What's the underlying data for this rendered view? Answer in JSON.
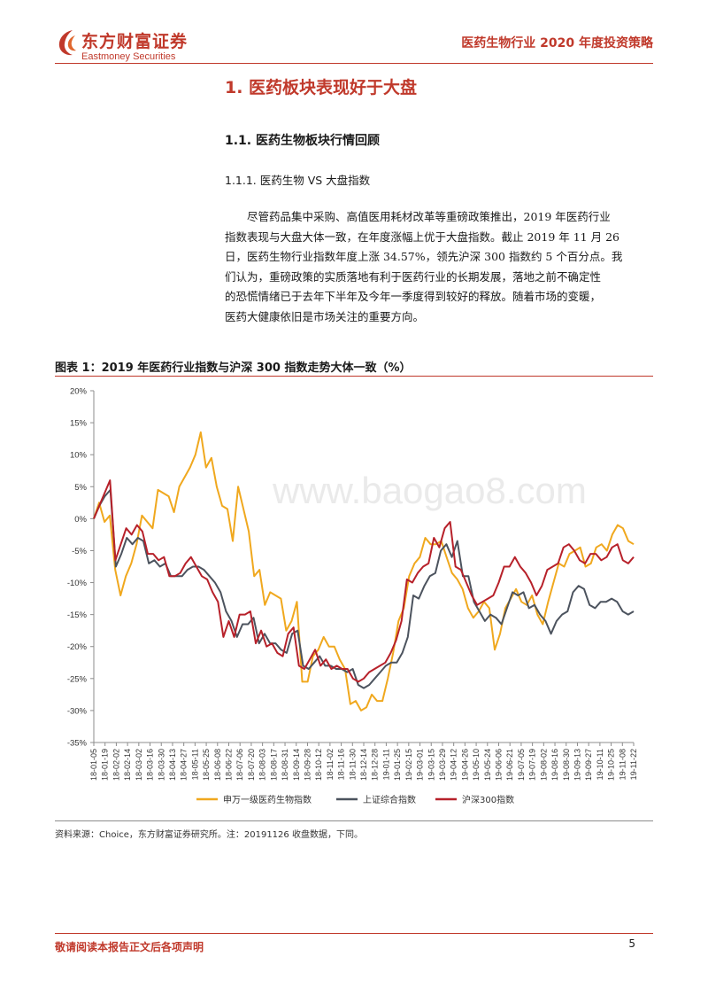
{
  "header": {
    "logo_cn": "东方财富证券",
    "logo_en": "Eastmoney Securities",
    "report_title": "医药生物行业 2020 年度投资策略"
  },
  "sections": {
    "h1": "1. 医药板块表现好于大盘",
    "h2": "1.1. 医药生物板块行情回顾",
    "h3": "1.1.1. 医药生物 VS 大盘指数"
  },
  "paragraph": {
    "lines": [
      "尽管药品集中采购、高值医用耗材改革等重磅政策推出，2019 年医药行业",
      "指数表现与大盘大体一致，在年度涨幅上优于大盘指数。截止 2019 年 11 月 26",
      "日，医药生物行业指数年度上涨 34.57%，领先沪深 300 指数约 5 个百分点。我",
      "们认为，重磅政策的实质落地有利于医药行业的长期发展，落地之前不确定性",
      "的恐慌情绪已于去年下半年及今年一季度得到较好的释放。随着市场的变暖，",
      "医药大健康依旧是市场关注的重要方向。"
    ]
  },
  "figure": {
    "title": "图表 1：2019 年医药行业指数与沪深 300 指数走势大体一致（%）",
    "watermark": "www.baogao8.com",
    "source": "资料来源：Choice，东方财富证券研究所。注：20191126 收盘数据，下同。"
  },
  "chart_data": {
    "type": "line",
    "title": "",
    "xlabel": "",
    "ylabel": "",
    "ylim": [
      -35,
      20
    ],
    "yticks": [
      "20%",
      "15%",
      "10%",
      "5%",
      "0%",
      "-5%",
      "-10%",
      "-15%",
      "-20%",
      "-25%",
      "-30%",
      "-35%"
    ],
    "ytick_values": [
      20,
      15,
      10,
      5,
      0,
      -5,
      -10,
      -15,
      -20,
      -25,
      -30,
      -35
    ],
    "xtick_labels": [
      "18-01-05",
      "18-01-19",
      "18-02-02",
      "18-02-14",
      "18-03-02",
      "18-03-16",
      "18-03-30",
      "18-04-13",
      "18-04-27",
      "18-05-11",
      "18-05-25",
      "18-06-08",
      "18-06-22",
      "18-07-06",
      "18-07-20",
      "18-08-03",
      "18-08-17",
      "18-08-31",
      "18-09-14",
      "18-09-28",
      "18-10-12",
      "18-11-02",
      "18-11-16",
      "18-11-30",
      "18-12-14",
      "18-12-28",
      "19-01-11",
      "19-01-25",
      "19-02-15",
      "19-03-01",
      "19-03-15",
      "19-03-29",
      "19-04-12",
      "19-04-26",
      "19-05-10",
      "19-05-24",
      "19-06-06",
      "19-06-21",
      "19-07-05",
      "19-07-19",
      "19-08-02",
      "19-08-16",
      "19-08-30",
      "19-09-13",
      "19-09-27",
      "19-10-11",
      "19-10-25",
      "19-11-08",
      "19-11-22"
    ],
    "grid": false,
    "legend_position": "bottom",
    "series": [
      {
        "name": "申万一级医药生物指数",
        "color": "#f0a81e",
        "values": [
          0,
          2.5,
          -0.5,
          0.5,
          -8,
          -12,
          -9,
          -7,
          -4,
          0.5,
          -0.5,
          -1.5,
          4.5,
          4,
          3.5,
          1,
          5,
          6.5,
          8,
          10,
          13.5,
          8,
          9.5,
          5,
          2,
          1.5,
          -3.5,
          5,
          1.5,
          -2,
          -9,
          -8,
          -13.5,
          -11.5,
          -12,
          -12.5,
          -17.5,
          -16,
          -13,
          -25.5,
          -25.5,
          -21.5,
          -20.5,
          -18.5,
          -20,
          -20,
          -22,
          -23.5,
          -29,
          -28.5,
          -30,
          -29.5,
          -27.5,
          -28.5,
          -28.5,
          -25,
          -21,
          -16,
          -14,
          -9,
          -7,
          -6,
          -3,
          -4,
          -4,
          -3.5,
          -6,
          -8.5,
          -9.5,
          -11,
          -14,
          -15.5,
          -14.5,
          -13,
          -14,
          -20.5,
          -18,
          -14,
          -12.5,
          -11,
          -13,
          -13.5,
          -12,
          -15,
          -16.5,
          -13,
          -10,
          -7,
          -7.5,
          -5.5,
          -5,
          -4.5,
          -7.5,
          -7,
          -4.5,
          -4,
          -5,
          -2.5,
          -1,
          -1.5,
          -3.5,
          -4
        ]
      },
      {
        "name": "上证综合指数",
        "color": "#4c535e",
        "values": [
          0,
          2,
          3.5,
          4.5,
          -7.5,
          -5.5,
          -3,
          -4,
          -3,
          -3.5,
          -7,
          -6.5,
          -7.5,
          -7,
          -9,
          -9,
          -9,
          -8,
          -7.5,
          -7.5,
          -8,
          -9,
          -10,
          -11.5,
          -14.5,
          -16,
          -18.5,
          -16.5,
          -16.5,
          -15.5,
          -19.5,
          -18,
          -19.5,
          -19.5,
          -20.5,
          -21,
          -18,
          -17.5,
          -23,
          -23.5,
          -22.5,
          -21.5,
          -23,
          -23,
          -23.5,
          -23.5,
          -24,
          -23.5,
          -26,
          -26.5,
          -26,
          -25,
          -24,
          -23,
          -22.5,
          -22.5,
          -21,
          -18.5,
          -12,
          -12.5,
          -10.5,
          -9,
          -8.5,
          -5,
          -4,
          -6,
          -3.5,
          -9,
          -9,
          -13,
          -14.5,
          -16,
          -15,
          -15.5,
          -16.5,
          -14,
          -11.5,
          -12,
          -11.5,
          -14,
          -13.5,
          -15,
          -16,
          -18,
          -16,
          -15,
          -14.5,
          -11.5,
          -10.5,
          -11,
          -13.5,
          -14,
          -13,
          -13,
          -12.5,
          -13,
          -14.5,
          -15,
          -14.5
        ]
      },
      {
        "name": "沪深300指数",
        "color": "#b7212a",
        "values": [
          0,
          2,
          4,
          6,
          -6.5,
          -4,
          -1.5,
          -2.5,
          -1,
          -2,
          -5.5,
          -5.5,
          -6.5,
          -6,
          -9,
          -9,
          -8.5,
          -7,
          -6,
          -7.5,
          -9,
          -9.5,
          -11.5,
          -13,
          -18.5,
          -16,
          -18.5,
          -15,
          -15,
          -14.5,
          -19.5,
          -17.5,
          -20,
          -19.5,
          -21,
          -21.5,
          -18,
          -17,
          -23,
          -23.5,
          -22,
          -20.5,
          -23,
          -22,
          -23.5,
          -23,
          -23.5,
          -23.5,
          -25,
          -25.5,
          -25,
          -24,
          -23.5,
          -23,
          -22.5,
          -21,
          -19,
          -16,
          -9.5,
          -10,
          -8.5,
          -7.5,
          -7,
          -3,
          -4.5,
          -1.5,
          -0.5,
          -7.5,
          -8,
          -10,
          -12,
          -13.5,
          -13,
          -12.5,
          -12,
          -10,
          -7.5,
          -7.5,
          -6,
          -7.5,
          -8.5,
          -10,
          -12,
          -10.5,
          -8,
          -7.5,
          -7,
          -4.5,
          -4,
          -5,
          -6.5,
          -7,
          -5.5,
          -5.5,
          -6.5,
          -6,
          -4.5,
          -4,
          -6.5,
          -7,
          -6
        ]
      }
    ]
  },
  "footer": {
    "note": "敬请阅读本报告正文后各项声明",
    "page": "5"
  }
}
